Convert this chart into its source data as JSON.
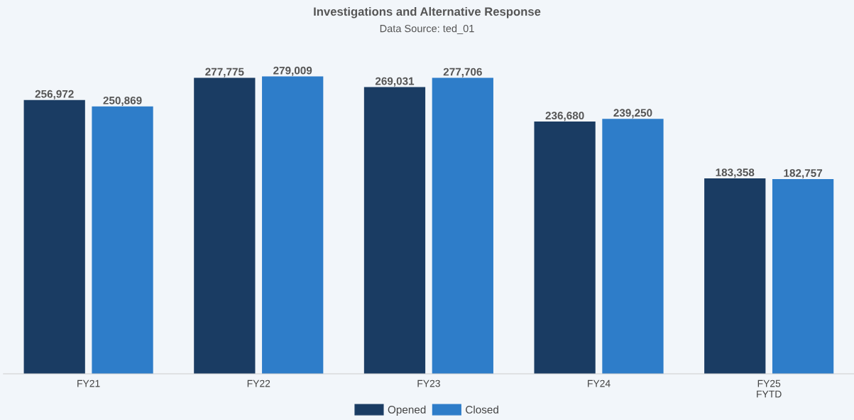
{
  "chart_data": {
    "type": "bar",
    "title": "Investigations and Alternative Response",
    "subtitle": "Data Source: ted_01",
    "categories": [
      "FY21",
      "FY22",
      "FY23",
      "FY24",
      "FY25\nFYTD"
    ],
    "series": [
      {
        "name": "Opened",
        "color": "#1a3c63",
        "values": [
          256972,
          277775,
          269031,
          236680,
          183358
        ],
        "value_labels": [
          "256,972",
          "277,775",
          "269,031",
          "236,680",
          "183,358"
        ]
      },
      {
        "name": "Closed",
        "color": "#2e7dc9",
        "values": [
          250869,
          279009,
          277706,
          239250,
          182757
        ],
        "value_labels": [
          "250,869",
          "279,009",
          "277,706",
          "239,250",
          "182,757"
        ]
      }
    ],
    "grid": false,
    "legend": "bottom"
  }
}
